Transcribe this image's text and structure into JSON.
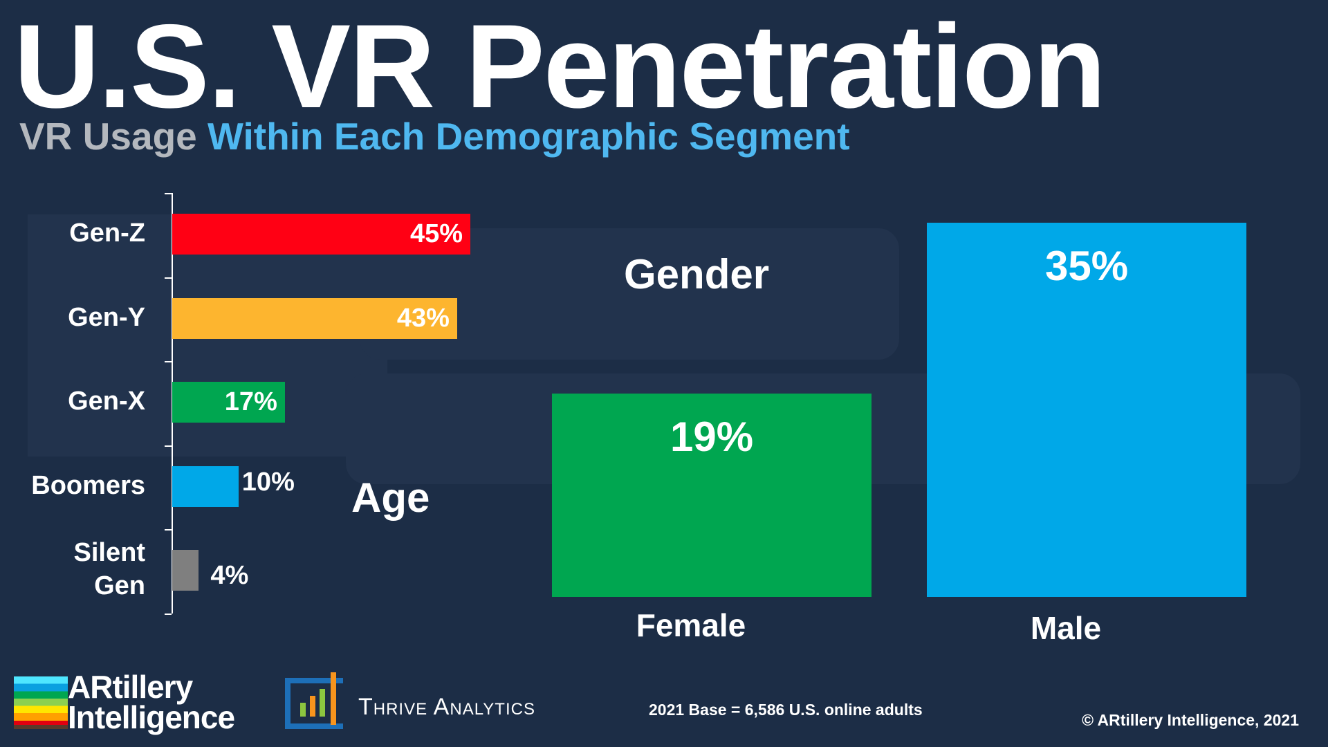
{
  "title": "U.S. VR Penetration",
  "subtitle": {
    "part1": "VR Usage",
    "part2": "Within Each Demographic Segment"
  },
  "watermark": "ARtillery Intelligence",
  "colors": {
    "background": "#1c2d46",
    "subtitle_gray": "#b4b8be",
    "subtitle_blue": "#4fb8f0"
  },
  "chart_data": [
    {
      "type": "bar",
      "orientation": "horizontal",
      "label": "Age",
      "categories": [
        "Gen-Z",
        "Gen-Y",
        "Gen-X",
        "Boomers",
        "Silent Gen"
      ],
      "values": [
        45,
        43,
        17,
        10,
        4
      ],
      "data_labels": [
        "45%",
        "43%",
        "17%",
        "10%",
        "4%"
      ],
      "colors": [
        "#ff0014",
        "#fdb52f",
        "#00a650",
        "#00a8e8",
        "#7f7f7f"
      ],
      "unit": "%"
    },
    {
      "type": "bar",
      "label": "Gender",
      "categories": [
        "Female",
        "Male"
      ],
      "values": [
        19,
        35
      ],
      "data_labels": [
        "19%",
        "35%"
      ],
      "colors": [
        "#00a650",
        "#00a8e8"
      ],
      "unit": "%"
    }
  ],
  "footer": {
    "logo1": "ARtillery Intelligence",
    "logo2": "Thrive Analytics",
    "base": "2021 Base = 6,586 U.S. online adults",
    "copyright": "© ARtillery Intelligence, 2021"
  }
}
